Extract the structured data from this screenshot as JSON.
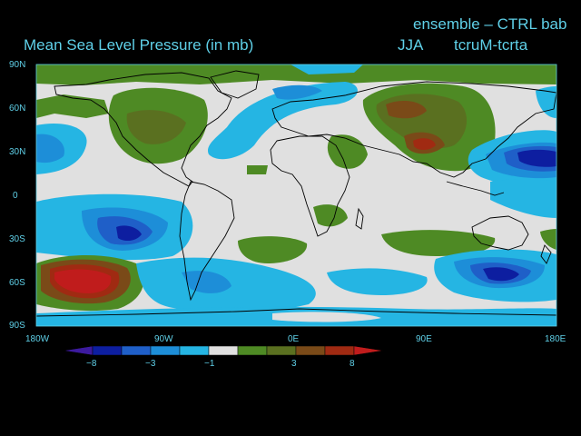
{
  "title": {
    "left": "Mean Sea Level Pressure (in mb)",
    "experiment": "ensemble – CTRL bab",
    "season": "JJA",
    "variable": "tcruM-tcrta"
  },
  "axes": {
    "lat_labels": [
      "90N",
      "60N",
      "30N",
      "0",
      "30S",
      "60S",
      "90S"
    ],
    "lon_labels": [
      "180W",
      "90W",
      "0E",
      "90E",
      "180E"
    ]
  },
  "colorbar": {
    "labels": [
      "−8",
      "−3",
      "−1",
      "3",
      "8"
    ],
    "colors": [
      "#3c1a9e",
      "#0d1ea0",
      "#1f5fc8",
      "#1d8ed8",
      "#25b5e3",
      "#e0e0e0",
      "#4e8a24",
      "#5a7020",
      "#7a4a18",
      "#a02a12",
      "#c01c1c"
    ]
  },
  "colors": {
    "text": "#5fd0e8",
    "background": "#000000",
    "map_background": "#e0e0e0",
    "coast": "#000000"
  }
}
